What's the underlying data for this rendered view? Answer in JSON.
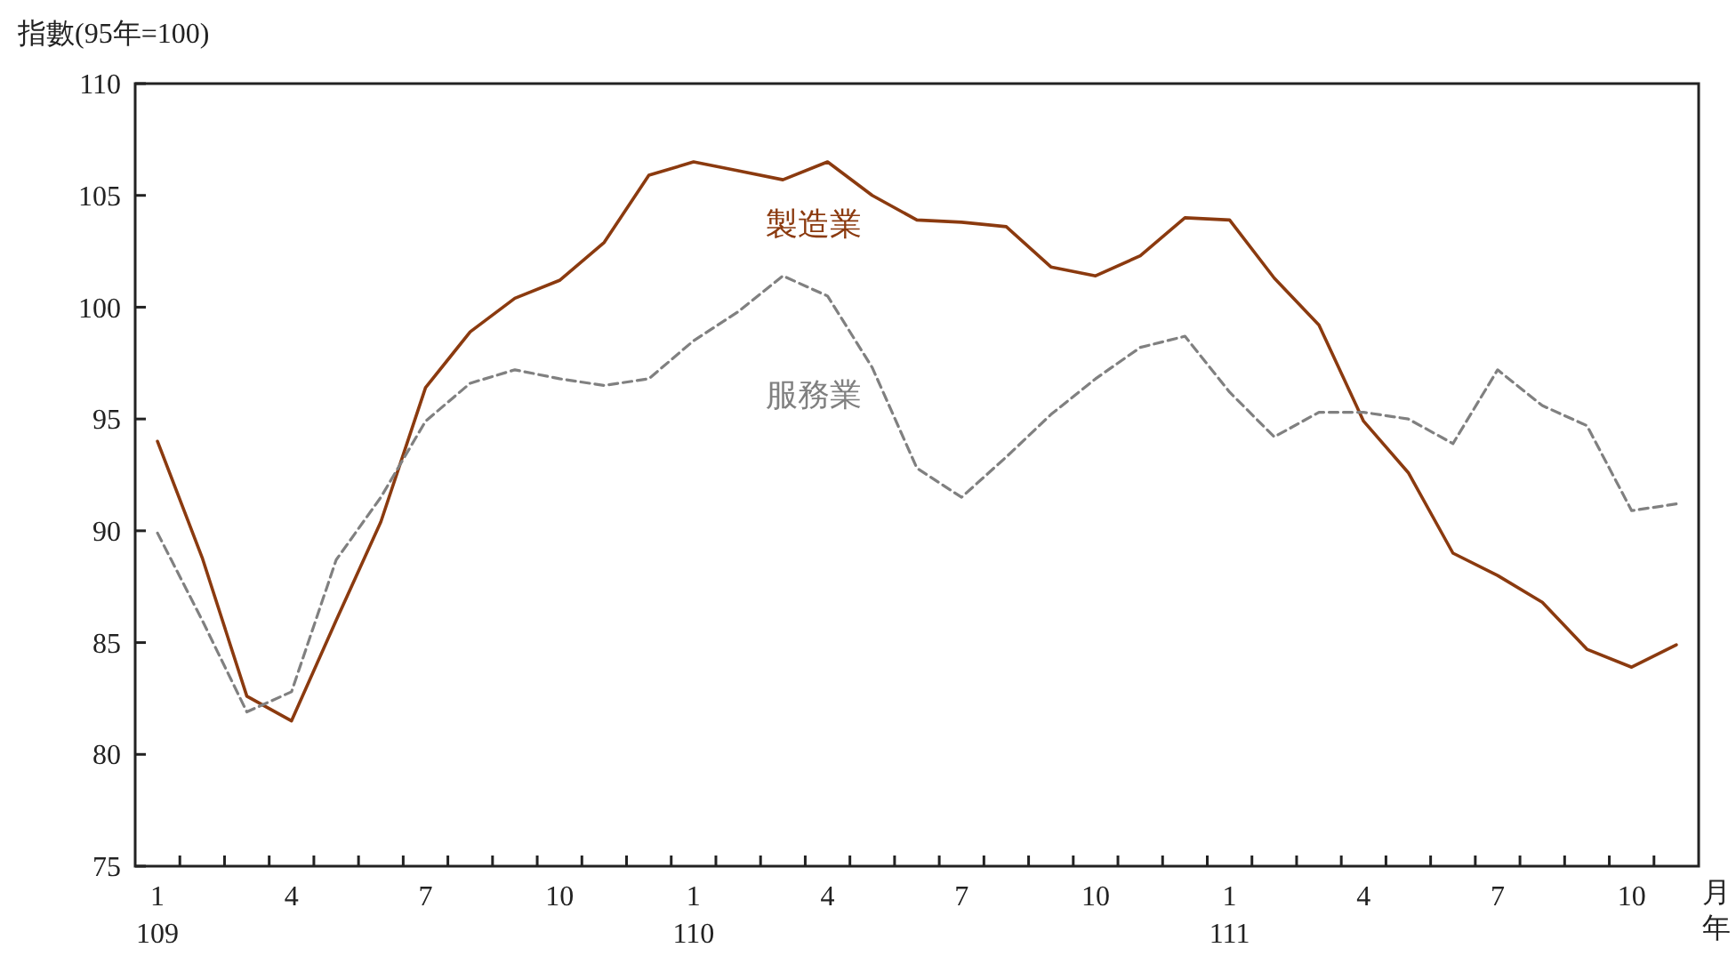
{
  "chart_data": {
    "type": "line",
    "ylabel": "指數(95年=100)",
    "xlabel": "月年",
    "categories": [
      "1\n109",
      null,
      null,
      "4",
      null,
      null,
      "7",
      null,
      null,
      "10",
      null,
      null,
      "1\n110",
      null,
      null,
      "4",
      null,
      null,
      "7",
      null,
      null,
      "10",
      null,
      null,
      "1\n111",
      null,
      null,
      "4",
      null,
      null,
      "7",
      null,
      null,
      "10",
      null
    ],
    "ylim": [
      75,
      110
    ],
    "yticks": [
      75,
      80,
      85,
      90,
      95,
      100,
      105,
      110
    ],
    "grid": false,
    "legend": false,
    "series": [
      {
        "name": "製造業",
        "color": "#8b3a0f",
        "line_style": "solid",
        "values": [
          94.0,
          88.8,
          82.6,
          81.5,
          86.0,
          90.4,
          96.4,
          98.9,
          100.4,
          101.2,
          102.9,
          105.9,
          106.5,
          106.1,
          105.7,
          106.5,
          105.0,
          103.9,
          103.8,
          103.6,
          101.8,
          101.4,
          102.3,
          104.0,
          103.9,
          101.3,
          99.2,
          94.9,
          92.6,
          89.0,
          88.0,
          86.8,
          84.7,
          83.9,
          84.9
        ]
      },
      {
        "name": "服務業",
        "color": "#808080",
        "line_style": "dashed",
        "values": [
          89.9,
          86.0,
          81.9,
          82.8,
          88.7,
          91.5,
          94.9,
          96.6,
          97.2,
          96.8,
          96.5,
          96.8,
          98.5,
          99.8,
          101.4,
          100.5,
          97.3,
          92.8,
          91.5,
          93.3,
          95.2,
          96.8,
          98.2,
          98.7,
          96.2,
          94.2,
          95.3,
          95.3,
          95.0,
          93.9,
          97.2,
          95.6,
          94.7,
          90.9,
          91.2
        ]
      }
    ]
  }
}
